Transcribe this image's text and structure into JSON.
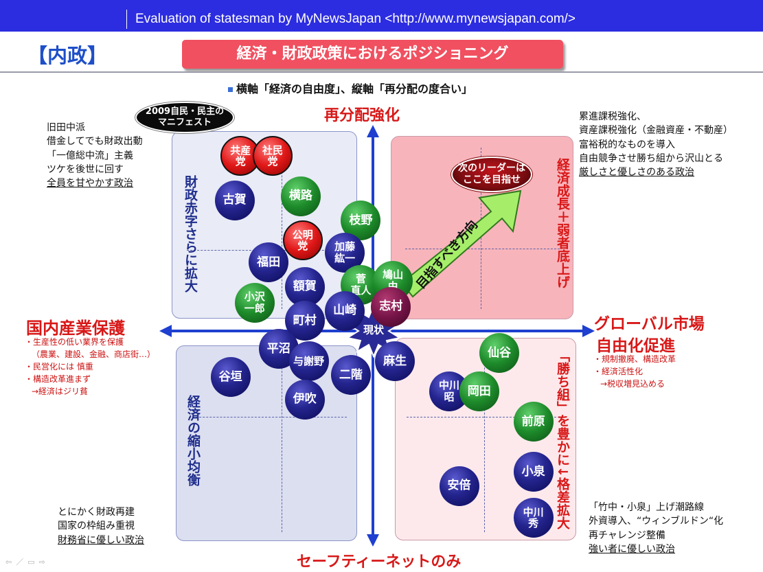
{
  "header": {
    "credit": "Evaluation of statesman  by MyNewsJapan <http://www.mynewsjapan.com/>",
    "bar_color": "#2c2ce0"
  },
  "section_tag": "【内政】",
  "title": "経済・財政政策におけるポジショニング",
  "axis_note": "横軸「経済の自由度」、縦軸「再分配の度合い」",
  "chart_data": {
    "type": "scatter",
    "title": "経済・財政政策におけるポジショニング",
    "subtitle": "横軸「経済の自由度」、縦軸「再分配の度合い」",
    "x_axis": {
      "left_label": "国内産業保護",
      "right_label": [
        "グローバル市場",
        "自由化促進"
      ],
      "range": [
        -1,
        1
      ]
    },
    "y_axis": {
      "top_label": "再分配強化",
      "bottom_label": "セーフティーネットのみ",
      "range": [
        -1,
        1
      ]
    },
    "quadrant_labels": {
      "top_left": "財政赤字さらに拡大",
      "top_right": "経済成長＋弱者底上げ",
      "bottom_left": "経済の縮小均衡",
      "bottom_right": "「勝ち組」を豊かに↓格差拡大"
    },
    "quadrant_colors": {
      "top_left": "#e9ebf6",
      "top_right": "#f8b4bb",
      "bottom_left": "#dcdff0",
      "bottom_right": "#fde9ec"
    },
    "series_colors": {
      "navy": "#1c1c80",
      "green": "#1d8a2a",
      "red": "#e01818",
      "maroon": "#761447"
    },
    "points": [
      {
        "label": [
          "共産",
          "党"
        ],
        "x": -0.66,
        "y": 0.87,
        "color": "red"
      },
      {
        "label": [
          "社民",
          "党"
        ],
        "x": -0.5,
        "y": 0.87,
        "color": "red"
      },
      {
        "label": [
          "古賀"
        ],
        "x": -0.69,
        "y": 0.65,
        "color": "navy"
      },
      {
        "label": [
          "横路"
        ],
        "x": -0.36,
        "y": 0.67,
        "color": "green"
      },
      {
        "label": [
          "枝野"
        ],
        "x": -0.06,
        "y": 0.55,
        "color": "green"
      },
      {
        "label": [
          "公明",
          "党"
        ],
        "x": -0.35,
        "y": 0.45,
        "color": "red"
      },
      {
        "label": [
          "加藤",
          "紘一"
        ],
        "x": -0.14,
        "y": 0.39,
        "color": "navy"
      },
      {
        "label": [
          "福田"
        ],
        "x": -0.52,
        "y": 0.34,
        "color": "navy"
      },
      {
        "label": [
          "菅",
          "直人"
        ],
        "x": -0.06,
        "y": 0.23,
        "color": "green"
      },
      {
        "label": [
          "鳩山",
          "由"
        ],
        "x": 0.1,
        "y": 0.25,
        "color": "green"
      },
      {
        "label": [
          "額賀"
        ],
        "x": -0.34,
        "y": 0.22,
        "color": "navy"
      },
      {
        "label": [
          "小沢",
          "一郎"
        ],
        "x": -0.59,
        "y": 0.14,
        "color": "green"
      },
      {
        "label": [
          "山崎"
        ],
        "x": -0.14,
        "y": 0.1,
        "color": "navy"
      },
      {
        "label": [
          "町村"
        ],
        "x": -0.34,
        "y": 0.05,
        "color": "navy"
      },
      {
        "label": [
          "志村"
        ],
        "x": 0.09,
        "y": 0.12,
        "color": "maroon"
      },
      {
        "label": [
          "平沼"
        ],
        "x": -0.47,
        "y": -0.09,
        "color": "navy"
      },
      {
        "label": [
          "与謝野"
        ],
        "x": -0.32,
        "y": -0.15,
        "color": "navy"
      },
      {
        "label": [
          "谷垣"
        ],
        "x": -0.71,
        "y": -0.23,
        "color": "navy"
      },
      {
        "label": [
          "二階"
        ],
        "x": -0.11,
        "y": -0.22,
        "color": "navy"
      },
      {
        "label": [
          "麻生"
        ],
        "x": 0.11,
        "y": -0.15,
        "color": "navy"
      },
      {
        "label": [
          "伊吹"
        ],
        "x": -0.34,
        "y": -0.34,
        "color": "navy"
      },
      {
        "label": [
          "中川",
          "昭"
        ],
        "x": 0.38,
        "y": -0.3,
        "color": "navy"
      },
      {
        "label": [
          "岡田"
        ],
        "x": 0.53,
        "y": -0.3,
        "color": "green"
      },
      {
        "label": [
          "仙谷"
        ],
        "x": 0.63,
        "y": -0.11,
        "color": "green"
      },
      {
        "label": [
          "前原"
        ],
        "x": 0.8,
        "y": -0.45,
        "color": "green"
      },
      {
        "label": [
          "安倍"
        ],
        "x": 0.43,
        "y": -0.77,
        "color": "navy"
      },
      {
        "label": [
          "小泉"
        ],
        "x": 0.8,
        "y": -0.7,
        "color": "navy"
      },
      {
        "label": [
          "中川",
          "秀"
        ],
        "x": 0.8,
        "y": -0.93,
        "color": "navy"
      }
    ],
    "current_state": {
      "label": "現状",
      "x": 0.02,
      "y": 0.01
    },
    "callouts": {
      "manifesto": [
        "2009自民・民主の",
        "マニフェスト"
      ],
      "next_leader": [
        "次のリーダーは",
        "ここを目指せ"
      ],
      "target_arrow": "目指すべき方向"
    }
  },
  "notes": {
    "top_left": [
      {
        "text": "旧田中派",
        "underline": false
      },
      {
        "text": "借金してでも財政出動",
        "underline": false
      },
      {
        "text": "「一億総中流」主義",
        "underline": false
      },
      {
        "text": "ツケを後世に回す",
        "underline": false
      },
      {
        "text": "全員を甘やかす政治",
        "underline": true
      }
    ],
    "top_right": [
      {
        "text": "累進課税強化、",
        "underline": false
      },
      {
        "text": "資産課税強化（金融資産・不動産）",
        "underline": false
      },
      {
        "text": "富裕税的なものを導入",
        "underline": false
      },
      {
        "text": "自由競争させ勝ち組から沢山とる",
        "underline": false
      },
      {
        "text": "厳しさと優しさのある政治",
        "underline": true
      }
    ],
    "bottom_left": [
      {
        "text": "とにかく財政再建",
        "underline": false
      },
      {
        "text": "国家の枠組み重視",
        "underline": false
      },
      {
        "text": "財務省に優しい政治",
        "underline": true
      }
    ],
    "bottom_right": [
      {
        "text": "「竹中・小泉」上げ潮路線",
        "underline": false
      },
      {
        "text": "外資導入、“ウィンブルドン“化",
        "underline": false
      },
      {
        "text": "再チャレンジ整備",
        "underline": false
      },
      {
        "text": "強い者に優しい政治",
        "underline": true
      }
    ],
    "left_red": [
      "・生産性の低い業界を保護",
      "（農業、建設、金融、商店街…）",
      "・民営化には 慎重",
      "・構造改革進まず",
      "→経済はジリ貧"
    ],
    "right_red": [
      "・規制撤廃、構造改革",
      "・経済活性化",
      "→税収増見込める"
    ]
  },
  "nav_icons": [
    "arrow-left-icon",
    "pen-icon",
    "menu-icon",
    "arrow-right-icon"
  ]
}
